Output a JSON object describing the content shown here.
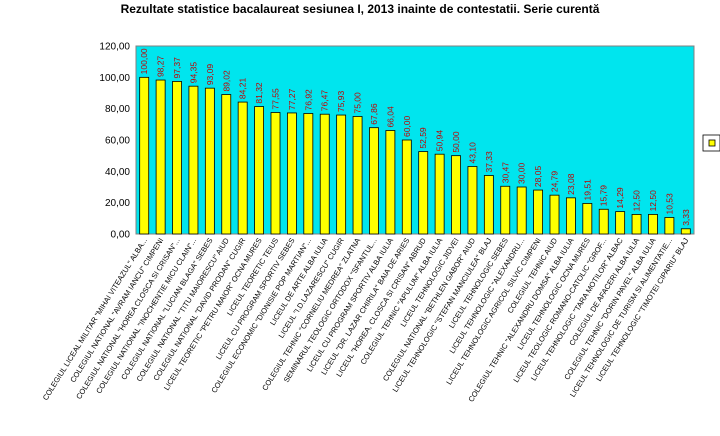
{
  "chart_data": {
    "type": "bar",
    "title": "Rezultate statistice bacalaureat sesiunea I, 2013 inainte de contestatii.  Serie curentă",
    "xlabel": "",
    "ylabel": "",
    "ylim": [
      0,
      120
    ],
    "yticks": [
      "0,00",
      "20,00",
      "40,00",
      "60,00",
      "80,00",
      "100,00",
      "120,00"
    ],
    "grid": false,
    "legend": "right",
    "colors": {
      "bar": "#ffff00",
      "bar_stroke": "#000000",
      "plot_bg": "#00e5ee",
      "labels": "#c00000"
    },
    "categories": [
      "COLEGIUL LICEAL MILITAR \"MIHAI VITEAZUL\" ALBA...",
      "COLEGIUL NATIONAL \"AVRAM IANCU\" CIMPENI",
      "COLEGIUL NATIONAL \"HOREA CLOSCA SI CRISAN\"...",
      "COLEGIUL NATIONAL \"INOCHENTIE MICU CLAIN\"...",
      "COLEGIUL NATIONAL \"LUCIAN BLAGA\" SEBES",
      "COLEGIUL NATIONAL \"TITU MAIORESCU\" AIUD",
      "COLEGIUL NATIONAL \"DAVID PRODAN\" CUGIR",
      "LICEUL TEORETIC \"PETRU MAIOR\" OCNA MURES",
      "LICEUL TEORETIC TEIUS",
      "LICEUL CU PROGRAM SPORTIV SEBES",
      "COLEGIUL ECONOMIC \"DIONISIE POP MARTIAN\"...",
      "LICEUL DE ARTE ALBA IULIA",
      "LICEUL \"I.D.LAZARESCU\" CUGIR",
      "COLEGIUL TEHNIC \"CORNELIU MEDREA\" ZLATNA",
      "SEMINARUL TEOLOGIC ORTODOX \"SFANTUL...",
      "LICEUL CU PROGRAM SPORTIV ALBA IULIA",
      "LICEUL \"DR. LAZAR CHIRILA\" BAIA DE ARIES",
      "LICEUL \"HOREA, CLOSCA SI CRISAN\" ABRUD",
      "COLEGIUL TEHNIC \"APULUM\" ALBA IULIA",
      "LICEUL TEHNOLOGIC JIDVEI",
      "COLEGIUL NATIONAL \"BETHLEN GABOR\" AIUD",
      "LICEUL TEHNOLOGIC \"STEFAN MANCIULEA\" BLAJ",
      "LICEUL TEHNOLOGIC SEBES",
      "LICEUL TEHNOLOGIC \"ALEXANDRU...",
      "LICEUL TEHNOLOGIC AGRICOL SILVIC CIMPENI",
      "COLEGIUL TEHNIC AIUD",
      "COLEGIUL TEHNIC \"ALEXANDRU DOMSA\" ALBA IULIA",
      "LICEUL TEHNOLOGIC OCNA MURES",
      "LICEUL TEOLOGIC ROMANO-CATOLIC \"GROF...",
      "LICEUL TEHNOLOGIC \"TARA MOTILOR\" ALBAC",
      "COLEGIUL DE AFACERI ALBA IULIA",
      "COLEGIUL TEHNIC \"DORIN PAVEL\" ALBA IULIA",
      "LICEUL TEHNOLOGIC DE TURISM SI ALIMENTATIE...",
      "LICEUL TEHNOLOGIC \"TIMOTEI CIPARIU\" BLAJ"
    ],
    "values": [
      100,
      98.27,
      97.37,
      94.35,
      93.09,
      89.02,
      84.21,
      81.32,
      77.55,
      77.27,
      76.92,
      76.47,
      75.93,
      75.0,
      67.86,
      66.04,
      60.0,
      52.59,
      50.94,
      50.0,
      43.1,
      37.33,
      30.47,
      30.0,
      28.05,
      24.79,
      23.08,
      19.51,
      15.79,
      14.29,
      12.5,
      12.5,
      10.53,
      3.33
    ],
    "value_labels": [
      "100,00",
      "98,27",
      "97,37",
      "94,35",
      "93,09",
      "89,02",
      "84,21",
      "81,32",
      "77,55",
      "77,27",
      "76,92",
      "76,47",
      "75,93",
      "75,00",
      "67,86",
      "66,04",
      "60,00",
      "52,59",
      "50,94",
      "50,00",
      "43,10",
      "37,33",
      "30,47",
      "30,00",
      "28,05",
      "24,79",
      "23,08",
      "19,51",
      "15,79",
      "14,29",
      "12,50",
      "12,50",
      "10,53",
      "3,33"
    ]
  }
}
